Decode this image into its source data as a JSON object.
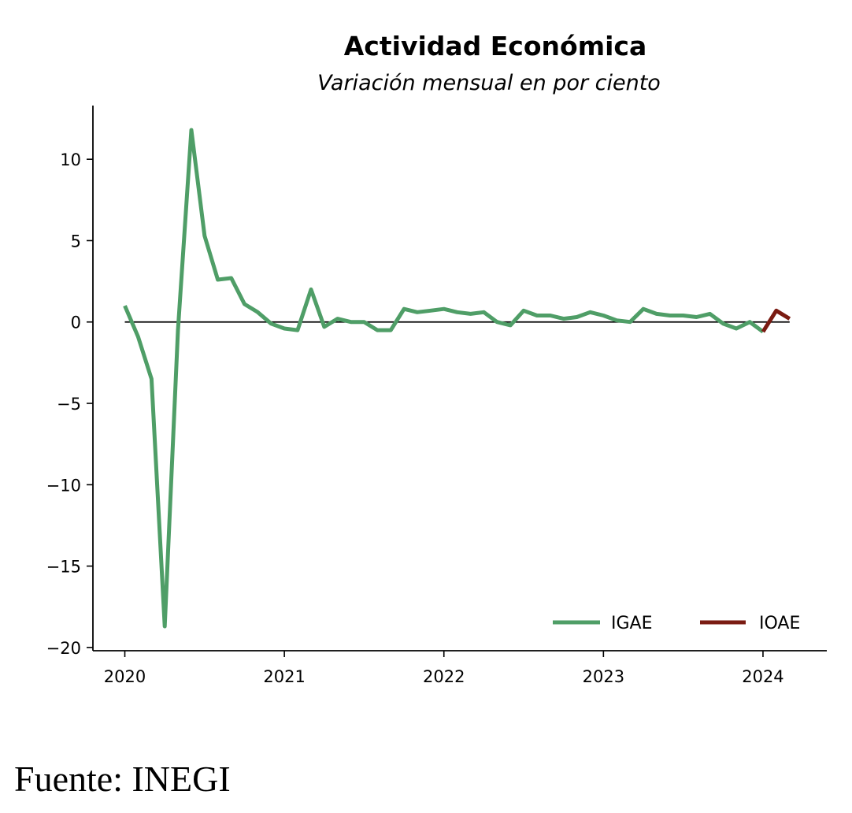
{
  "chart_data": {
    "type": "line",
    "title": "Actividad Económica",
    "subtitle": "Variación mensual en por ciento",
    "xlabel": "",
    "ylabel": "",
    "xlim": [
      -0.2,
      4.4
    ],
    "ylim": [
      -20.2,
      13.3
    ],
    "x_ticks": [
      0,
      1,
      2,
      3,
      4
    ],
    "x_tick_labels": [
      "2020",
      "2021",
      "2022",
      "2023",
      "2024"
    ],
    "y_ticks": [
      10,
      5,
      0,
      -5,
      -10,
      -15,
      -20
    ],
    "y_tick_labels": [
      "10",
      "5",
      "0",
      "−5",
      "−10",
      "−15",
      "−20"
    ],
    "zero_line": true,
    "grid": false,
    "legend_position": "bottom-right",
    "series": [
      {
        "name": "IGAE",
        "color": "#4f9e67",
        "x": [
          0,
          0.083,
          0.167,
          0.25,
          0.333,
          0.417,
          0.5,
          0.583,
          0.667,
          0.75,
          0.833,
          0.917,
          1.0,
          1.083,
          1.167,
          1.25,
          1.333,
          1.417,
          1.5,
          1.583,
          1.667,
          1.75,
          1.833,
          1.917,
          2.0,
          2.083,
          2.167,
          2.25,
          2.333,
          2.417,
          2.5,
          2.583,
          2.667,
          2.75,
          2.833,
          2.917,
          3.0,
          3.083,
          3.167,
          3.25,
          3.333,
          3.417,
          3.5,
          3.583,
          3.667,
          3.75,
          3.833,
          3.917,
          4.0
        ],
        "values": [
          1.0,
          -0.9,
          -3.5,
          -18.7,
          -0.5,
          11.8,
          5.3,
          2.6,
          2.7,
          1.1,
          0.6,
          -0.1,
          -0.4,
          -0.5,
          2.0,
          -0.3,
          0.2,
          0.0,
          0.0,
          -0.5,
          -0.5,
          0.8,
          0.6,
          0.7,
          0.8,
          0.6,
          0.5,
          0.6,
          0.0,
          -0.2,
          0.7,
          0.4,
          0.4,
          0.2,
          0.3,
          0.6,
          0.4,
          0.1,
          0.0,
          0.8,
          0.5,
          0.4,
          0.4,
          0.3,
          0.5,
          -0.1,
          -0.4,
          0.0,
          -0.6
        ]
      },
      {
        "name": "IOAE",
        "color": "#7a1b12",
        "x": [
          4.0,
          4.083,
          4.167
        ],
        "values": [
          -0.6,
          0.7,
          0.2
        ]
      }
    ]
  },
  "source": "Fuente: INEGI"
}
